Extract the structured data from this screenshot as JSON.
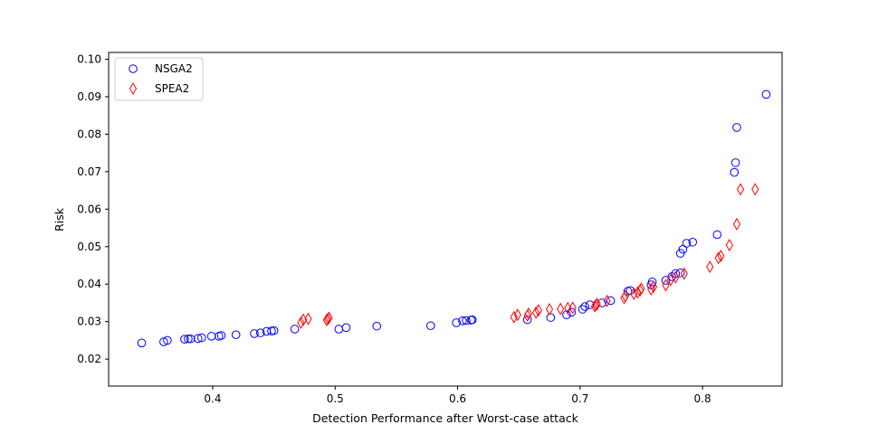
{
  "chart_data": {
    "type": "scatter",
    "xlabel": "Detection Performance after Worst-case attack",
    "ylabel": "Risk",
    "xlim": [
      0.315,
      0.865
    ],
    "ylim": [
      0.0128,
      0.1018
    ],
    "xticks": [
      0.4,
      0.5,
      0.6,
      0.7,
      0.8
    ],
    "xtick_labels": [
      "0.4",
      "0.5",
      "0.6",
      "0.7",
      "0.8"
    ],
    "yticks": [
      0.02,
      0.03,
      0.04,
      0.05,
      0.06,
      0.07,
      0.08,
      0.09,
      0.1
    ],
    "ytick_labels": [
      "0.02",
      "0.03",
      "0.04",
      "0.05",
      "0.06",
      "0.07",
      "0.08",
      "0.09",
      "0.10"
    ],
    "grid": false,
    "legend_position": "top-left",
    "series": [
      {
        "name": "NSGA2",
        "marker": "circle",
        "color": "#0000ff",
        "points": [
          [
            0.342,
            0.0243
          ],
          [
            0.36,
            0.0246
          ],
          [
            0.363,
            0.025
          ],
          [
            0.377,
            0.0253
          ],
          [
            0.38,
            0.0254
          ],
          [
            0.382,
            0.0254
          ],
          [
            0.388,
            0.0255
          ],
          [
            0.391,
            0.0257
          ],
          [
            0.399,
            0.0261
          ],
          [
            0.405,
            0.0261
          ],
          [
            0.407,
            0.0263
          ],
          [
            0.419,
            0.0265
          ],
          [
            0.434,
            0.0268
          ],
          [
            0.439,
            0.027
          ],
          [
            0.444,
            0.0274
          ],
          [
            0.448,
            0.0275
          ],
          [
            0.45,
            0.0276
          ],
          [
            0.467,
            0.028
          ],
          [
            0.503,
            0.028
          ],
          [
            0.509,
            0.0284
          ],
          [
            0.534,
            0.0288
          ],
          [
            0.578,
            0.0289
          ],
          [
            0.599,
            0.0297
          ],
          [
            0.604,
            0.0302
          ],
          [
            0.607,
            0.0303
          ],
          [
            0.611,
            0.0304
          ],
          [
            0.612,
            0.0305
          ],
          [
            0.657,
            0.0305
          ],
          [
            0.676,
            0.0311
          ],
          [
            0.689,
            0.0318
          ],
          [
            0.693,
            0.0325
          ],
          [
            0.702,
            0.0333
          ],
          [
            0.704,
            0.034
          ],
          [
            0.708,
            0.0345
          ],
          [
            0.718,
            0.035
          ],
          [
            0.725,
            0.0356
          ],
          [
            0.739,
            0.0381
          ],
          [
            0.741,
            0.0383
          ],
          [
            0.758,
            0.0398
          ],
          [
            0.759,
            0.0406
          ],
          [
            0.77,
            0.041
          ],
          [
            0.775,
            0.042
          ],
          [
            0.778,
            0.0428
          ],
          [
            0.782,
            0.043
          ],
          [
            0.782,
            0.0482
          ],
          [
            0.784,
            0.0493
          ],
          [
            0.787,
            0.0509
          ],
          [
            0.792,
            0.0512
          ],
          [
            0.812,
            0.0532
          ],
          [
            0.826,
            0.0698
          ],
          [
            0.827,
            0.0724
          ],
          [
            0.828,
            0.0818
          ],
          [
            0.852,
            0.0906
          ]
        ]
      },
      {
        "name": "SPEA2",
        "marker": "diamond",
        "color": "#ff0000",
        "points": [
          [
            0.472,
            0.0297
          ],
          [
            0.474,
            0.0305
          ],
          [
            0.478,
            0.0307
          ],
          [
            0.493,
            0.0304
          ],
          [
            0.494,
            0.0307
          ],
          [
            0.495,
            0.031
          ],
          [
            0.646,
            0.0312
          ],
          [
            0.649,
            0.0318
          ],
          [
            0.657,
            0.0316
          ],
          [
            0.658,
            0.0321
          ],
          [
            0.664,
            0.0324
          ],
          [
            0.666,
            0.033
          ],
          [
            0.675,
            0.0333
          ],
          [
            0.684,
            0.0334
          ],
          [
            0.69,
            0.0336
          ],
          [
            0.694,
            0.0337
          ],
          [
            0.712,
            0.0341
          ],
          [
            0.713,
            0.0344
          ],
          [
            0.714,
            0.0347
          ],
          [
            0.722,
            0.0355
          ],
          [
            0.736,
            0.0363
          ],
          [
            0.737,
            0.0368
          ],
          [
            0.744,
            0.0374
          ],
          [
            0.747,
            0.0378
          ],
          [
            0.749,
            0.0383
          ],
          [
            0.75,
            0.0388
          ],
          [
            0.758,
            0.0386
          ],
          [
            0.76,
            0.0393
          ],
          [
            0.77,
            0.0397
          ],
          [
            0.774,
            0.0411
          ],
          [
            0.778,
            0.0418
          ],
          [
            0.785,
            0.0428
          ],
          [
            0.806,
            0.0446
          ],
          [
            0.813,
            0.047
          ],
          [
            0.815,
            0.0475
          ],
          [
            0.822,
            0.0504
          ],
          [
            0.828,
            0.056
          ],
          [
            0.831,
            0.0653
          ],
          [
            0.843,
            0.0653
          ]
        ]
      }
    ]
  }
}
